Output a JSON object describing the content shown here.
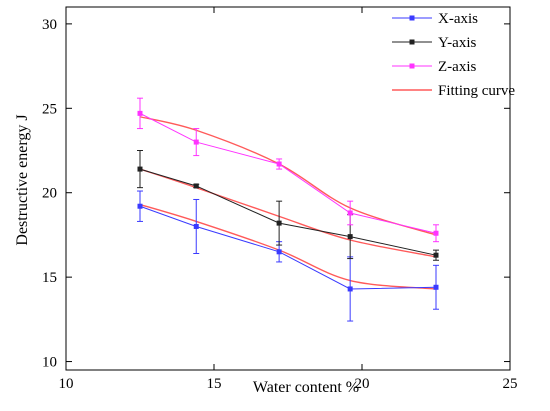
{
  "chart_data": {
    "type": "line",
    "xlabel": "Water content  %",
    "ylabel": "Destructive energy  J",
    "xlim": [
      10,
      25
    ],
    "ylim": [
      9.5,
      31
    ],
    "x_ticks": [
      10,
      15,
      20,
      25
    ],
    "y_ticks": [
      10,
      15,
      20,
      25,
      30
    ],
    "grid": false,
    "legend_position": "top-right",
    "x": [
      12.5,
      14.4,
      17.2,
      19.6,
      22.5
    ],
    "series": [
      {
        "name": "X-axis",
        "color": "#3a3aff",
        "marker": "square",
        "values": [
          19.2,
          18.0,
          16.5,
          14.3,
          14.4
        ],
        "error": [
          0.9,
          1.6,
          0.6,
          1.9,
          1.3
        ],
        "fit": [
          19.3,
          18.3,
          16.6,
          14.8,
          14.3
        ]
      },
      {
        "name": "Y-axis",
        "color": "#222222",
        "marker": "square",
        "values": [
          21.4,
          20.4,
          18.2,
          17.4,
          16.3
        ],
        "error": [
          1.1,
          0.1,
          1.3,
          1.3,
          0.3
        ],
        "fit": [
          21.4,
          20.3,
          18.6,
          17.2,
          16.2
        ]
      },
      {
        "name": "Z-axis",
        "color": "#ff33ff",
        "marker": "square",
        "values": [
          24.7,
          23.0,
          21.7,
          18.8,
          17.6
        ],
        "error": [
          0.9,
          0.8,
          0.3,
          0.7,
          0.5
        ],
        "fit": [
          24.5,
          23.7,
          21.7,
          19.1,
          17.5
        ]
      }
    ],
    "fitting_curve": {
      "name": "Fitting curve",
      "color": "#ff5a5a"
    }
  }
}
